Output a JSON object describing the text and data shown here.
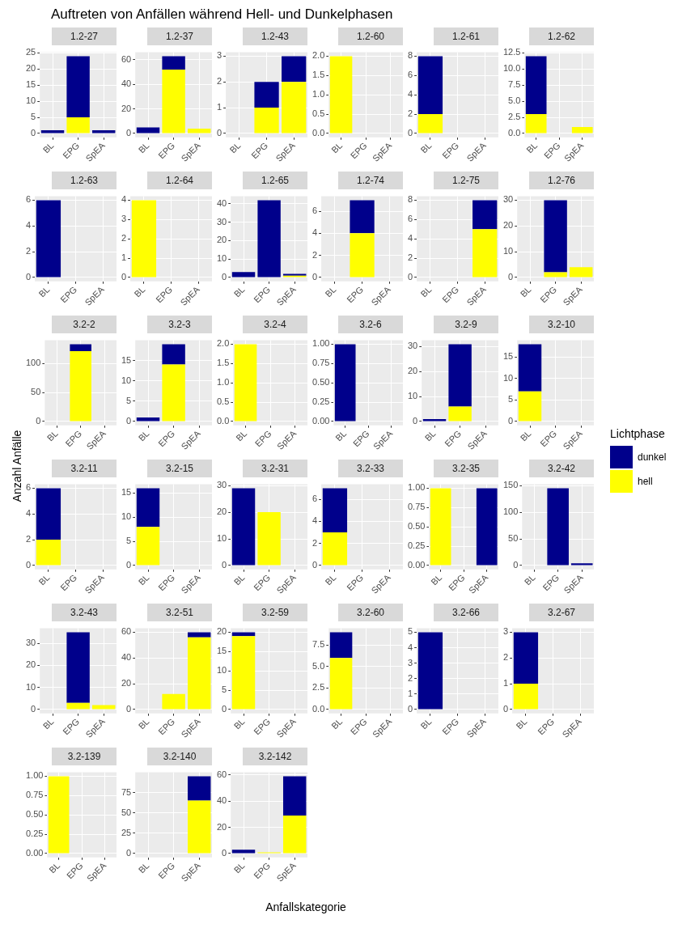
{
  "chart_data": [
    {
      "type": "other",
      "title": "Auftreten von Anfällen während Hell- und Dunkelphasen",
      "xlabel": "Anfallskategorie",
      "ylabel": "Anzahl Anfälle"
    },
    {
      "type": "bar",
      "title": "1.2-27",
      "categories": [
        "BL",
        "EPG",
        "SpEA"
      ],
      "stacked": true,
      "grid": true,
      "legend_title": "Lichtphase",
      "legend": "right",
      "ylim": [
        -1.2,
        25.2
      ],
      "yticks": [
        0,
        5,
        10,
        15,
        20,
        25
      ],
      "series": [
        {
          "name": "hell",
          "color": "#ffff00",
          "values": [
            null,
            5,
            null
          ]
        },
        {
          "name": "dunkel",
          "color": "#00008b",
          "values": [
            1,
            19,
            1
          ]
        }
      ]
    },
    {
      "type": "bar",
      "title": "1.2-37",
      "categories": [
        "BL",
        "EPG",
        "SpEA"
      ],
      "stacked": true,
      "grid": true,
      "ylim": [
        -3.15,
        66.15
      ],
      "yticks": [
        0,
        20,
        40,
        60
      ],
      "series": [
        {
          "color": "#ffff00",
          "values": [
            null,
            52,
            4
          ]
        },
        {
          "color": "#00008b",
          "values": [
            5,
            11,
            null
          ]
        }
      ]
    },
    {
      "type": "bar",
      "title": "1.2-43",
      "categories": [
        "BL",
        "EPG",
        "SpEA"
      ],
      "stacked": true,
      "grid": true,
      "ylim": [
        -0.15,
        3.15
      ],
      "yticks": [
        0,
        1,
        2,
        3
      ],
      "series": [
        {
          "color": "#ffff00",
          "values": [
            null,
            1,
            2
          ]
        },
        {
          "color": "#00008b",
          "values": [
            null,
            1,
            1
          ]
        }
      ]
    },
    {
      "type": "bar",
      "title": "1.2-60",
      "categories": [
        "BL",
        "EPG",
        "SpEA"
      ],
      "stacked": true,
      "grid": true,
      "ylim": [
        -0.1,
        2.1
      ],
      "yticks": [
        {
          "value": 0,
          "label": "0.0"
        },
        {
          "value": 0.5,
          "label": "0.5"
        },
        {
          "value": 1,
          "label": "1.0"
        },
        {
          "value": 1.5,
          "label": "1.5"
        },
        {
          "value": 2,
          "label": "2.0"
        }
      ],
      "series": [
        {
          "color": "#ffff00",
          "values": [
            2,
            null,
            null
          ]
        },
        {
          "color": "#00008b",
          "values": [
            null,
            null,
            null
          ]
        }
      ]
    },
    {
      "type": "bar",
      "title": "1.2-61",
      "categories": [
        "BL",
        "EPG",
        "SpEA"
      ],
      "stacked": true,
      "grid": true,
      "ylim": [
        -0.4,
        8.4
      ],
      "yticks": [
        0,
        2,
        4,
        6,
        8
      ],
      "series": [
        {
          "color": "#ffff00",
          "values": [
            2,
            null,
            null
          ]
        },
        {
          "color": "#00008b",
          "values": [
            6,
            null,
            null
          ]
        }
      ]
    },
    {
      "type": "bar",
      "title": "1.2-62",
      "categories": [
        "BL",
        "EPG",
        "SpEA"
      ],
      "stacked": true,
      "grid": true,
      "ylim": [
        -0.6,
        12.6
      ],
      "yticks": [
        {
          "value": 0,
          "label": "0.0"
        },
        {
          "value": 2.5,
          "label": "2.5"
        },
        {
          "value": 5,
          "label": "5.0"
        },
        {
          "value": 7.5,
          "label": "7.5"
        },
        {
          "value": 10,
          "label": "10.0"
        },
        {
          "value": 12.5,
          "label": "12.5"
        }
      ],
      "series": [
        {
          "color": "#ffff00",
          "values": [
            3,
            null,
            1
          ]
        },
        {
          "color": "#00008b",
          "values": [
            9,
            null,
            null
          ]
        }
      ]
    },
    {
      "type": "bar",
      "title": "1.2-63",
      "categories": [
        "BL",
        "EPG",
        "SpEA"
      ],
      "stacked": true,
      "grid": true,
      "ylim": [
        -0.3,
        6.3
      ],
      "yticks": [
        0,
        2,
        4,
        6
      ],
      "series": [
        {
          "color": "#ffff00",
          "values": [
            null,
            null,
            null
          ]
        },
        {
          "color": "#00008b",
          "values": [
            6,
            null,
            null
          ]
        }
      ]
    },
    {
      "type": "bar",
      "title": "1.2-64",
      "categories": [
        "BL",
        "EPG",
        "SpEA"
      ],
      "stacked": true,
      "grid": true,
      "ylim": [
        -0.2,
        4.2
      ],
      "yticks": [
        0,
        1,
        2,
        3,
        4
      ],
      "series": [
        {
          "color": "#ffff00",
          "values": [
            4,
            null,
            null
          ]
        },
        {
          "color": "#00008b",
          "values": [
            null,
            null,
            null
          ]
        }
      ]
    },
    {
      "type": "bar",
      "title": "1.2-65",
      "categories": [
        "BL",
        "EPG",
        "SpEA"
      ],
      "stacked": true,
      "grid": true,
      "ylim": [
        -2.1,
        44.1
      ],
      "yticks": [
        0,
        10,
        20,
        30,
        40
      ],
      "series": [
        {
          "color": "#ffff00",
          "values": [
            null,
            null,
            1
          ]
        },
        {
          "color": "#00008b",
          "values": [
            3,
            42,
            1
          ]
        }
      ]
    },
    {
      "type": "bar",
      "title": "1.2-74",
      "categories": [
        "BL",
        "EPG",
        "SpEA"
      ],
      "stacked": true,
      "grid": true,
      "ylim": [
        -0.35,
        7.35
      ],
      "yticks": [
        0,
        2,
        4,
        6
      ],
      "series": [
        {
          "color": "#ffff00",
          "values": [
            null,
            4,
            null
          ]
        },
        {
          "color": "#00008b",
          "values": [
            null,
            3,
            null
          ]
        }
      ]
    },
    {
      "type": "bar",
      "title": "1.2-75",
      "categories": [
        "BL",
        "EPG",
        "SpEA"
      ],
      "stacked": true,
      "grid": true,
      "ylim": [
        -0.4,
        8.4
      ],
      "yticks": [
        0,
        2,
        4,
        6,
        8
      ],
      "series": [
        {
          "color": "#ffff00",
          "values": [
            null,
            null,
            5
          ]
        },
        {
          "color": "#00008b",
          "values": [
            null,
            null,
            3
          ]
        }
      ]
    },
    {
      "type": "bar",
      "title": "1.2-76",
      "categories": [
        "BL",
        "EPG",
        "SpEA"
      ],
      "stacked": true,
      "grid": true,
      "ylim": [
        -1.5,
        31.5
      ],
      "yticks": [
        0,
        10,
        20,
        30
      ],
      "series": [
        {
          "color": "#ffff00",
          "values": [
            null,
            2,
            4
          ]
        },
        {
          "color": "#00008b",
          "values": [
            null,
            28,
            null
          ]
        }
      ]
    },
    {
      "type": "bar",
      "title": "3.2-2",
      "categories": [
        "BL",
        "EPG",
        "SpEA"
      ],
      "stacked": true,
      "grid": true,
      "ylim": [
        -6.65,
        139.65
      ],
      "yticks": [
        0,
        50,
        100
      ],
      "series": [
        {
          "color": "#ffff00",
          "values": [
            null,
            121,
            null
          ]
        },
        {
          "color": "#00008b",
          "values": [
            null,
            12,
            null
          ]
        }
      ]
    },
    {
      "type": "bar",
      "title": "3.2-3",
      "categories": [
        "BL",
        "EPG",
        "SpEA"
      ],
      "stacked": true,
      "grid": true,
      "ylim": [
        -0.95,
        19.95
      ],
      "yticks": [
        0,
        5,
        10,
        15
      ],
      "series": [
        {
          "color": "#ffff00",
          "values": [
            null,
            14,
            null
          ]
        },
        {
          "color": "#00008b",
          "values": [
            1,
            5,
            null
          ]
        }
      ]
    },
    {
      "type": "bar",
      "title": "3.2-4",
      "categories": [
        "BL",
        "EPG",
        "SpEA"
      ],
      "stacked": true,
      "grid": true,
      "ylim": [
        -0.1,
        2.1
      ],
      "yticks": [
        {
          "value": 0,
          "label": "0.0"
        },
        {
          "value": 0.5,
          "label": "0.5"
        },
        {
          "value": 1,
          "label": "1.0"
        },
        {
          "value": 1.5,
          "label": "1.5"
        },
        {
          "value": 2,
          "label": "2.0"
        }
      ],
      "series": [
        {
          "color": "#ffff00",
          "values": [
            2,
            null,
            null
          ]
        },
        {
          "color": "#00008b",
          "values": [
            null,
            null,
            null
          ]
        }
      ]
    },
    {
      "type": "bar",
      "title": "3.2-6",
      "categories": [
        "BL",
        "EPG",
        "SpEA"
      ],
      "stacked": true,
      "grid": true,
      "ylim": [
        -0.05,
        1.05
      ],
      "yticks": [
        {
          "value": 0,
          "label": "0.00"
        },
        {
          "value": 0.25,
          "label": "0.25"
        },
        {
          "value": 0.5,
          "label": "0.50"
        },
        {
          "value": 0.75,
          "label": "0.75"
        },
        {
          "value": 1,
          "label": "1.00"
        }
      ],
      "series": [
        {
          "color": "#ffff00",
          "values": [
            null,
            null,
            null
          ]
        },
        {
          "color": "#00008b",
          "values": [
            1,
            null,
            null
          ]
        }
      ]
    },
    {
      "type": "bar",
      "title": "3.2-9",
      "categories": [
        "BL",
        "EPG",
        "SpEA"
      ],
      "stacked": true,
      "grid": true,
      "ylim": [
        -1.55,
        32.55
      ],
      "yticks": [
        0,
        10,
        20,
        30
      ],
      "series": [
        {
          "color": "#ffff00",
          "values": [
            null,
            6,
            null
          ]
        },
        {
          "color": "#00008b",
          "values": [
            1,
            25,
            null
          ]
        }
      ]
    },
    {
      "type": "bar",
      "title": "3.2-10",
      "categories": [
        "BL",
        "EPG",
        "SpEA"
      ],
      "stacked": true,
      "grid": true,
      "ylim": [
        -0.9,
        18.9
      ],
      "yticks": [
        0,
        5,
        10,
        15
      ],
      "series": [
        {
          "color": "#ffff00",
          "values": [
            7,
            null,
            null
          ]
        },
        {
          "color": "#00008b",
          "values": [
            11,
            null,
            null
          ]
        }
      ]
    },
    {
      "type": "bar",
      "title": "3.2-11",
      "categories": [
        "BL",
        "EPG",
        "SpEA"
      ],
      "stacked": true,
      "grid": true,
      "ylim": [
        -0.3,
        6.3
      ],
      "yticks": [
        0,
        2,
        4,
        6
      ],
      "series": [
        {
          "color": "#ffff00",
          "values": [
            2,
            null,
            null
          ]
        },
        {
          "color": "#00008b",
          "values": [
            4,
            null,
            null
          ]
        }
      ]
    },
    {
      "type": "bar",
      "title": "3.2-15",
      "categories": [
        "BL",
        "EPG",
        "SpEA"
      ],
      "stacked": true,
      "grid": true,
      "ylim": [
        -0.8,
        16.8
      ],
      "yticks": [
        0,
        5,
        10,
        15
      ],
      "series": [
        {
          "color": "#ffff00",
          "values": [
            8,
            null,
            null
          ]
        },
        {
          "color": "#00008b",
          "values": [
            8,
            null,
            null
          ]
        }
      ]
    },
    {
      "type": "bar",
      "title": "3.2-31",
      "categories": [
        "BL",
        "EPG",
        "SpEA"
      ],
      "stacked": true,
      "grid": true,
      "ylim": [
        -1.45,
        30.45
      ],
      "yticks": [
        0,
        10,
        20,
        30
      ],
      "series": [
        {
          "color": "#ffff00",
          "values": [
            null,
            20,
            null
          ]
        },
        {
          "color": "#00008b",
          "values": [
            29,
            null,
            null
          ]
        }
      ]
    },
    {
      "type": "bar",
      "title": "3.2-33",
      "categories": [
        "BL",
        "EPG",
        "SpEA"
      ],
      "stacked": true,
      "grid": true,
      "ylim": [
        -0.35,
        7.35
      ],
      "yticks": [
        0,
        2,
        4,
        6
      ],
      "series": [
        {
          "color": "#ffff00",
          "values": [
            3,
            null,
            null
          ]
        },
        {
          "color": "#00008b",
          "values": [
            4,
            null,
            null
          ]
        }
      ]
    },
    {
      "type": "bar",
      "title": "3.2-35",
      "categories": [
        "BL",
        "EPG",
        "SpEA"
      ],
      "stacked": true,
      "grid": true,
      "ylim": [
        -0.05,
        1.05
      ],
      "yticks": [
        {
          "value": 0,
          "label": "0.00"
        },
        {
          "value": 0.25,
          "label": "0.25"
        },
        {
          "value": 0.5,
          "label": "0.50"
        },
        {
          "value": 0.75,
          "label": "0.75"
        },
        {
          "value": 1,
          "label": "1.00"
        }
      ],
      "series": [
        {
          "color": "#ffff00",
          "values": [
            1,
            null,
            null
          ]
        },
        {
          "color": "#00008b",
          "values": [
            null,
            null,
            1
          ]
        }
      ]
    },
    {
      "type": "bar",
      "title": "3.2-42",
      "categories": [
        "BL",
        "EPG",
        "SpEA"
      ],
      "stacked": true,
      "grid": true,
      "ylim": [
        -7.25,
        152.25
      ],
      "yticks": [
        0,
        50,
        100,
        150
      ],
      "series": [
        {
          "color": "#ffff00",
          "values": [
            null,
            null,
            null
          ]
        },
        {
          "color": "#00008b",
          "values": [
            null,
            145,
            4
          ]
        }
      ]
    },
    {
      "type": "bar",
      "title": "3.2-43",
      "categories": [
        "BL",
        "EPG",
        "SpEA"
      ],
      "stacked": true,
      "grid": true,
      "ylim": [
        -1.75,
        36.75
      ],
      "yticks": [
        0,
        10,
        20,
        30
      ],
      "series": [
        {
          "color": "#ffff00",
          "values": [
            null,
            3,
            2
          ]
        },
        {
          "color": "#00008b",
          "values": [
            null,
            32,
            null
          ]
        }
      ]
    },
    {
      "type": "bar",
      "title": "3.2-51",
      "categories": [
        "BL",
        "EPG",
        "SpEA"
      ],
      "stacked": true,
      "grid": true,
      "ylim": [
        -3,
        63
      ],
      "yticks": [
        0,
        20,
        40,
        60
      ],
      "series": [
        {
          "color": "#ffff00",
          "values": [
            null,
            12,
            56
          ]
        },
        {
          "color": "#00008b",
          "values": [
            null,
            null,
            4
          ]
        }
      ]
    },
    {
      "type": "bar",
      "title": "3.2-59",
      "categories": [
        "BL",
        "EPG",
        "SpEA"
      ],
      "stacked": true,
      "grid": true,
      "ylim": [
        -1,
        21
      ],
      "yticks": [
        0,
        5,
        10,
        15,
        20
      ],
      "series": [
        {
          "color": "#ffff00",
          "values": [
            19,
            null,
            null
          ]
        },
        {
          "color": "#00008b",
          "values": [
            1,
            null,
            null
          ]
        }
      ]
    },
    {
      "type": "bar",
      "title": "3.2-60",
      "categories": [
        "BL",
        "EPG",
        "SpEA"
      ],
      "stacked": true,
      "grid": true,
      "ylim": [
        -0.45,
        9.45
      ],
      "yticks": [
        {
          "value": 0,
          "label": "0.0"
        },
        {
          "value": 2.5,
          "label": "2.5"
        },
        {
          "value": 5,
          "label": "5.0"
        },
        {
          "value": 7.5,
          "label": "7.5"
        }
      ],
      "series": [
        {
          "color": "#ffff00",
          "values": [
            6,
            null,
            null
          ]
        },
        {
          "color": "#00008b",
          "values": [
            3,
            null,
            null
          ]
        }
      ]
    },
    {
      "type": "bar",
      "title": "3.2-66",
      "categories": [
        "BL",
        "EPG",
        "SpEA"
      ],
      "stacked": true,
      "grid": true,
      "ylim": [
        -0.25,
        5.25
      ],
      "yticks": [
        0,
        1,
        2,
        3,
        4,
        5
      ],
      "series": [
        {
          "color": "#ffff00",
          "values": [
            null,
            null,
            null
          ]
        },
        {
          "color": "#00008b",
          "values": [
            5,
            null,
            null
          ]
        }
      ]
    },
    {
      "type": "bar",
      "title": "3.2-67",
      "categories": [
        "BL",
        "EPG",
        "SpEA"
      ],
      "stacked": true,
      "grid": true,
      "ylim": [
        -0.15,
        3.15
      ],
      "yticks": [
        0,
        1,
        2,
        3
      ],
      "series": [
        {
          "color": "#ffff00",
          "values": [
            1,
            null,
            null
          ]
        },
        {
          "color": "#00008b",
          "values": [
            2,
            null,
            null
          ]
        }
      ]
    },
    {
      "type": "bar",
      "title": "3.2-139",
      "categories": [
        "BL",
        "EPG",
        "SpEA"
      ],
      "stacked": true,
      "grid": true,
      "ylim": [
        -0.05,
        1.05
      ],
      "yticks": [
        {
          "value": 0,
          "label": "0.00"
        },
        {
          "value": 0.25,
          "label": "0.25"
        },
        {
          "value": 0.5,
          "label": "0.50"
        },
        {
          "value": 0.75,
          "label": "0.75"
        },
        {
          "value": 1,
          "label": "1.00"
        }
      ],
      "series": [
        {
          "color": "#ffff00",
          "values": [
            1,
            null,
            null
          ]
        },
        {
          "color": "#00008b",
          "values": [
            null,
            null,
            null
          ]
        }
      ]
    },
    {
      "type": "bar",
      "title": "3.2-140",
      "categories": [
        "BL",
        "EPG",
        "SpEA"
      ],
      "stacked": true,
      "grid": true,
      "ylim": [
        -4.75,
        99.75
      ],
      "yticks": [
        0,
        25,
        50,
        75
      ],
      "series": [
        {
          "color": "#ffff00",
          "values": [
            null,
            null,
            65
          ]
        },
        {
          "color": "#00008b",
          "values": [
            null,
            null,
            30
          ]
        }
      ]
    },
    {
      "type": "bar",
      "title": "3.2-142",
      "categories": [
        "BL",
        "EPG",
        "SpEA"
      ],
      "stacked": true,
      "grid": true,
      "ylim": [
        -2.95,
        61.95
      ],
      "yticks": [
        0,
        20,
        40,
        60
      ],
      "series": [
        {
          "color": "#ffff00",
          "values": [
            null,
            1,
            29
          ]
        },
        {
          "color": "#00008b",
          "values": [
            3,
            null,
            30
          ]
        }
      ]
    }
  ]
}
